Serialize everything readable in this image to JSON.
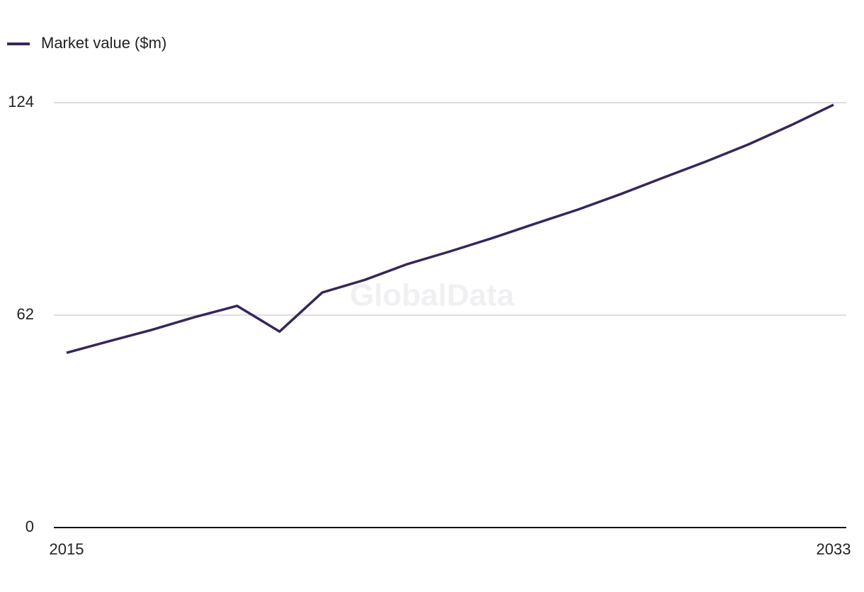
{
  "chart_data": {
    "type": "line",
    "watermark": "GlobalData",
    "x": [
      2015,
      2016,
      2017,
      2018,
      2019,
      2020,
      2021,
      2022,
      2023,
      2024,
      2025,
      2026,
      2027,
      2028,
      2029,
      2030,
      2031,
      2032,
      2033
    ],
    "series": [
      {
        "name": "Market value ($m)",
        "color": "#37265a",
        "values": [
          51.0,
          54.4,
          57.7,
          61.4,
          64.7,
          57.2,
          68.6,
          72.3,
          76.9,
          80.6,
          84.5,
          88.7,
          92.8,
          97.3,
          102.1,
          106.8,
          111.8,
          117.4,
          123.4
        ]
      }
    ],
    "xlim": [
      2015,
      2033
    ],
    "xticks": [
      2015,
      2033
    ],
    "ylim": [
      0,
      124
    ],
    "yticks": [
      0,
      62,
      124
    ],
    "grid": true
  }
}
